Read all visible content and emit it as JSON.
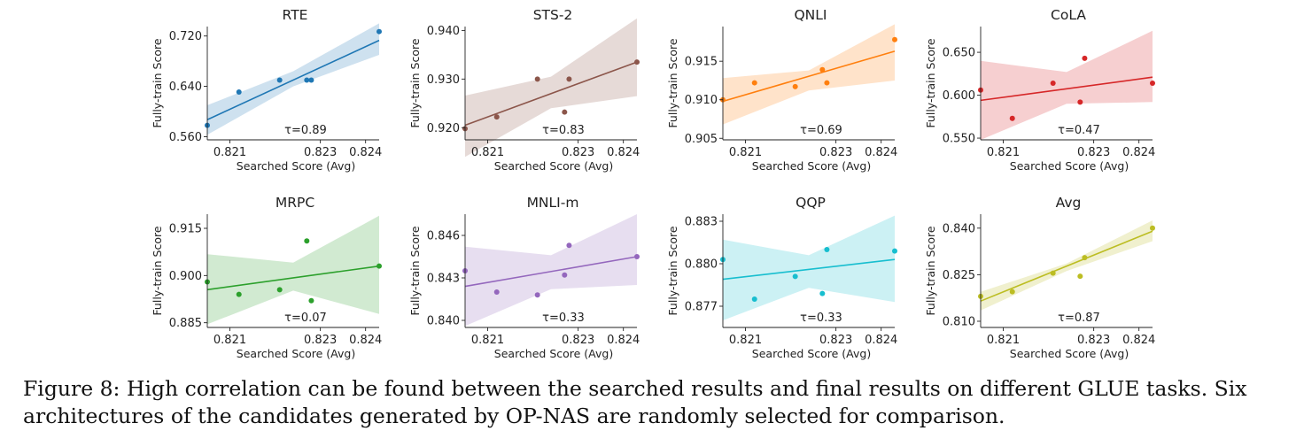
{
  "caption": "Figure 8: High correlation can be found between the searched results and final results on different GLUE tasks. Six architectures of the candidates generated by OP-NAS are randomly selected for comparison.",
  "chart_data": [
    {
      "type": "scatter",
      "title": "RTE",
      "xlabel": "Searched Score (Avg)",
      "ylabel": "Fully-train Score",
      "color": "#1f77b4",
      "xlim": [
        0.8205,
        0.8243
      ],
      "xticks": [
        "0.821",
        "0.823",
        "0.824"
      ],
      "xtick_values": [
        0.821,
        0.823,
        0.824
      ],
      "ylim": [
        0.555,
        0.735
      ],
      "yticks": [
        "0.560",
        "0.640",
        "0.720"
      ],
      "ytick_values": [
        0.56,
        0.64,
        0.72
      ],
      "points": [
        {
          "x": 0.8205,
          "y": 0.578
        },
        {
          "x": 0.8212,
          "y": 0.631
        },
        {
          "x": 0.8221,
          "y": 0.65
        },
        {
          "x": 0.8227,
          "y": 0.65
        },
        {
          "x": 0.8228,
          "y": 0.65
        },
        {
          "x": 0.8243,
          "y": 0.727
        }
      ],
      "fit": {
        "y0": 0.587,
        "y1": 0.713
      },
      "band": {
        "start": [
          0.563,
          0.61
        ],
        "mid": [
          0.64,
          0.664
        ],
        "end": [
          0.69,
          0.74
        ]
      },
      "tau": "τ=0.89"
    },
    {
      "type": "scatter",
      "title": "STS-2",
      "xlabel": "Searched Score (Avg)",
      "ylabel": "Fully-train Score",
      "color": "#8c564b",
      "xlim": [
        0.8205,
        0.8243
      ],
      "xticks": [
        "0.821",
        "0.823",
        "0.824"
      ],
      "xtick_values": [
        0.821,
        0.823,
        0.824
      ],
      "ylim": [
        0.9175,
        0.9408
      ],
      "yticks": [
        "0.920",
        "0.930",
        "0.940"
      ],
      "ytick_values": [
        0.92,
        0.93,
        0.94
      ],
      "points": [
        {
          "x": 0.8205,
          "y": 0.9198
        },
        {
          "x": 0.8212,
          "y": 0.9222
        },
        {
          "x": 0.8221,
          "y": 0.93
        },
        {
          "x": 0.8227,
          "y": 0.9232
        },
        {
          "x": 0.8228,
          "y": 0.93
        },
        {
          "x": 0.8243,
          "y": 0.9335
        }
      ],
      "fit": {
        "y0": 0.9205,
        "y1": 0.9335
      },
      "band": {
        "start": [
          0.914,
          0.9266
        ],
        "mid": [
          0.924,
          0.9305
        ],
        "end": [
          0.9265,
          0.9425
        ]
      },
      "tau": "τ=0.83"
    },
    {
      "type": "scatter",
      "title": "QNLI",
      "xlabel": "Searched Score (Avg)",
      "ylabel": "Fully-train Score",
      "color": "#ff7f0e",
      "xlim": [
        0.8205,
        0.8243
      ],
      "xticks": [
        "0.821",
        "0.823",
        "0.824"
      ],
      "xtick_values": [
        0.821,
        0.823,
        0.824
      ],
      "ylim": [
        0.9048,
        0.9195
      ],
      "yticks": [
        "0.905",
        "0.910",
        "0.915"
      ],
      "ytick_values": [
        0.905,
        0.91,
        0.915
      ],
      "points": [
        {
          "x": 0.8205,
          "y": 0.91
        },
        {
          "x": 0.8212,
          "y": 0.9122
        },
        {
          "x": 0.8221,
          "y": 0.9117
        },
        {
          "x": 0.8227,
          "y": 0.9139
        },
        {
          "x": 0.8228,
          "y": 0.9122
        },
        {
          "x": 0.8243,
          "y": 0.9178
        }
      ],
      "fit": {
        "y0": 0.9098,
        "y1": 0.9163
      },
      "band": {
        "start": [
          0.9068,
          0.9128
        ],
        "mid": [
          0.9112,
          0.9138
        ],
        "end": [
          0.9125,
          0.9198
        ]
      },
      "tau": "τ=0.69"
    },
    {
      "type": "scatter",
      "title": "CoLA",
      "xlabel": "Searched Score (Avg)",
      "ylabel": "Fully-train Score",
      "color": "#d62728",
      "xlim": [
        0.8205,
        0.8243
      ],
      "xticks": [
        "0.821",
        "0.823",
        "0.824"
      ],
      "xtick_values": [
        0.821,
        0.823,
        0.824
      ],
      "ylim": [
        0.548,
        0.68
      ],
      "yticks": [
        "0.550",
        "0.600",
        "0.650"
      ],
      "ytick_values": [
        0.55,
        0.6,
        0.65
      ],
      "points": [
        {
          "x": 0.8205,
          "y": 0.606
        },
        {
          "x": 0.8212,
          "y": 0.573
        },
        {
          "x": 0.8221,
          "y": 0.614
        },
        {
          "x": 0.8227,
          "y": 0.592
        },
        {
          "x": 0.8228,
          "y": 0.643
        },
        {
          "x": 0.8243,
          "y": 0.614
        }
      ],
      "fit": {
        "y0": 0.594,
        "y1": 0.621
      },
      "band": {
        "start": [
          0.548,
          0.64
        ],
        "mid": [
          0.59,
          0.627
        ],
        "end": [
          0.592,
          0.675
        ]
      },
      "tau": "τ=0.47"
    },
    {
      "type": "scatter",
      "title": "MRPC",
      "xlabel": "Searched Score (Avg)",
      "ylabel": "Fully-train Score",
      "color": "#2ca02c",
      "xlim": [
        0.8205,
        0.8243
      ],
      "xticks": [
        "0.821",
        "0.823",
        "0.824"
      ],
      "xtick_values": [
        0.821,
        0.823,
        0.824
      ],
      "ylim": [
        0.8835,
        0.9195
      ],
      "yticks": [
        "0.885",
        "0.900",
        "0.915"
      ],
      "ytick_values": [
        0.885,
        0.9,
        0.915
      ],
      "points": [
        {
          "x": 0.8205,
          "y": 0.898
        },
        {
          "x": 0.8212,
          "y": 0.894
        },
        {
          "x": 0.8221,
          "y": 0.8955
        },
        {
          "x": 0.8227,
          "y": 0.911
        },
        {
          "x": 0.8228,
          "y": 0.892
        },
        {
          "x": 0.8243,
          "y": 0.903
        }
      ],
      "fit": {
        "y0": 0.8955,
        "y1": 0.903
      },
      "band": {
        "start": [
          0.8845,
          0.9068
        ],
        "mid": [
          0.8952,
          0.9041
        ],
        "end": [
          0.8878,
          0.919
        ]
      },
      "tau": "τ=0.07"
    },
    {
      "type": "scatter",
      "title": "MNLI-m",
      "xlabel": "Searched Score (Avg)",
      "ylabel": "Fully-train Score",
      "color": "#9467bd",
      "xlim": [
        0.8205,
        0.8243
      ],
      "xticks": [
        "0.821",
        "0.823",
        "0.824"
      ],
      "xtick_values": [
        0.821,
        0.823,
        0.824
      ],
      "ylim": [
        0.8395,
        0.8475
      ],
      "yticks": [
        "0.840",
        "0.843",
        "0.846"
      ],
      "ytick_values": [
        0.84,
        0.843,
        0.846
      ],
      "points": [
        {
          "x": 0.8205,
          "y": 0.8435
        },
        {
          "x": 0.8212,
          "y": 0.842
        },
        {
          "x": 0.8221,
          "y": 0.8418
        },
        {
          "x": 0.8227,
          "y": 0.8432
        },
        {
          "x": 0.8228,
          "y": 0.8453
        },
        {
          "x": 0.8243,
          "y": 0.8445
        }
      ],
      "fit": {
        "y0": 0.8424,
        "y1": 0.8445
      },
      "band": {
        "start": [
          0.8396,
          0.8452
        ],
        "mid": [
          0.8422,
          0.8446
        ],
        "end": [
          0.8425,
          0.8475
        ]
      },
      "tau": "τ=0.33"
    },
    {
      "type": "scatter",
      "title": "QQP",
      "xlabel": "Searched Score (Avg)",
      "ylabel": "Fully-train Score",
      "color": "#17becf",
      "xlim": [
        0.8205,
        0.8243
      ],
      "xticks": [
        "0.821",
        "0.823",
        "0.824"
      ],
      "xtick_values": [
        0.821,
        0.823,
        0.824
      ],
      "ylim": [
        0.8755,
        0.8835
      ],
      "yticks": [
        "0.877",
        "0.880",
        "0.883"
      ],
      "ytick_values": [
        0.877,
        0.88,
        0.883
      ],
      "points": [
        {
          "x": 0.8205,
          "y": 0.8803
        },
        {
          "x": 0.8212,
          "y": 0.8775
        },
        {
          "x": 0.8221,
          "y": 0.8791
        },
        {
          "x": 0.8227,
          "y": 0.8779
        },
        {
          "x": 0.8228,
          "y": 0.881
        },
        {
          "x": 0.8243,
          "y": 0.8809
        }
      ],
      "fit": {
        "y0": 0.8789,
        "y1": 0.8803
      },
      "band": {
        "start": [
          0.876,
          0.8817
        ],
        "mid": [
          0.8783,
          0.8806
        ],
        "end": [
          0.8773,
          0.8834
        ]
      },
      "tau": "τ=0.33"
    },
    {
      "type": "scatter",
      "title": "Avg",
      "xlabel": "Searched Score (Avg)",
      "ylabel": "Fully-train Score",
      "color": "#bcbd22",
      "xlim": [
        0.8205,
        0.8243
      ],
      "xticks": [
        "0.821",
        "0.823",
        "0.824"
      ],
      "xtick_values": [
        0.821,
        0.823,
        0.824
      ],
      "ylim": [
        0.808,
        0.8445
      ],
      "yticks": [
        "0.810",
        "0.825",
        "0.840"
      ],
      "ytick_values": [
        0.81,
        0.825,
        0.84
      ],
      "points": [
        {
          "x": 0.8205,
          "y": 0.818
        },
        {
          "x": 0.8212,
          "y": 0.8195
        },
        {
          "x": 0.8221,
          "y": 0.8255
        },
        {
          "x": 0.8227,
          "y": 0.8245
        },
        {
          "x": 0.8228,
          "y": 0.8305
        },
        {
          "x": 0.8243,
          "y": 0.84
        }
      ],
      "fit": {
        "y0": 0.8165,
        "y1": 0.839
      },
      "band": {
        "start": [
          0.8135,
          0.8195
        ],
        "mid": [
          0.8262,
          0.8286
        ],
        "end": [
          0.8358,
          0.8425
        ]
      },
      "tau": "τ=0.87"
    }
  ]
}
